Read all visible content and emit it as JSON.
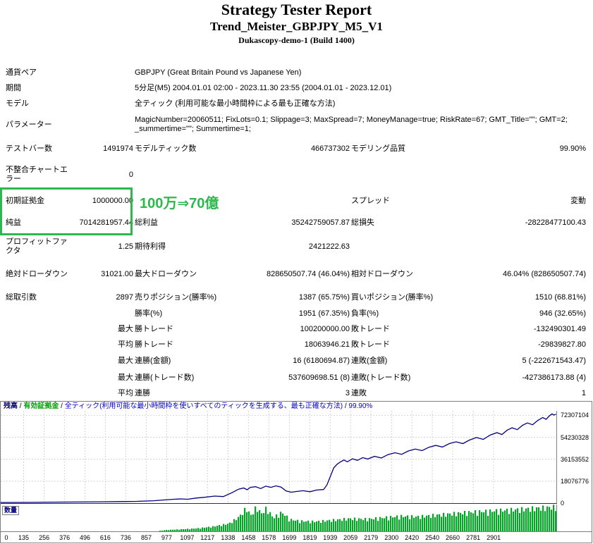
{
  "header": {
    "title": "Strategy Tester Report",
    "ea_name": "Trend_Meister_GBPJPY_M5_V1",
    "server": "Dukascopy-demo-1 (Build 1400)"
  },
  "highlight": {
    "annotation": "100万⇒70億",
    "color": "#2db84d"
  },
  "table": {
    "rows": [
      [
        {
          "t": "通貨ペア",
          "s": 2
        },
        {
          "t": "GBPJPY (Great Britain Pound vs Japanese Yen)",
          "s": 4
        }
      ],
      [
        {
          "t": "期間",
          "s": 2
        },
        {
          "t": "5分足(M5) 2004.01.01 02:00 - 2023.11.30 23:55 (2004.01.01 - 2023.12.01)",
          "s": 4
        }
      ],
      [
        {
          "t": "モデル",
          "s": 2
        },
        {
          "t": "全ティック (利用可能な最小時間枠による最も正確な方法)",
          "s": 4
        }
      ],
      [
        {
          "t": "パラメーター",
          "s": 2
        },
        {
          "t": "MagicNumber=20060511; FixLots=0.1; Slippage=3; MaxSpread=7; MoneyManage=true; RiskRate=67; GMT_Title=\"\"; GMT=2; _summertime=\"\"; Summertime=1;",
          "s": 4
        }
      ],
      [
        {
          "t": "テストバー数"
        },
        {
          "t": "1491974",
          "a": "r"
        },
        {
          "t": "モデルティック数"
        },
        {
          "t": "466737302",
          "a": "r"
        },
        {
          "t": "モデリング品質"
        },
        {
          "t": "99.90%",
          "a": "r"
        }
      ],
      [
        {
          "t": "不整合チャートエラー"
        },
        {
          "t": "0",
          "a": "r"
        },
        {
          "t": "",
          "s": 4
        }
      ],
      [
        {
          "t": "初期証拠金"
        },
        {
          "t": "1000000.00",
          "a": "r"
        },
        {
          "t": "",
          "s": 2
        },
        {
          "t": "スプレッド"
        },
        {
          "t": "変動",
          "a": "r"
        }
      ],
      [
        {
          "t": "純益"
        },
        {
          "t": "7014281957.44",
          "a": "r"
        },
        {
          "t": "総利益"
        },
        {
          "t": "35242759057.87",
          "a": "r"
        },
        {
          "t": "総損失"
        },
        {
          "t": "-28228477100.43",
          "a": "r"
        }
      ],
      [
        {
          "t": "プロフィットファクタ"
        },
        {
          "t": "1.25",
          "a": "r"
        },
        {
          "t": "期待利得"
        },
        {
          "t": "2421222.63",
          "a": "r"
        },
        {
          "t": "",
          "s": 2
        }
      ],
      [
        {
          "t": "絶対ドローダウン"
        },
        {
          "t": "31021.00",
          "a": "r"
        },
        {
          "t": "最大ドローダウン"
        },
        {
          "t": "828650507.74 (46.04%)",
          "a": "r"
        },
        {
          "t": "相対ドローダウン"
        },
        {
          "t": "46.04% (828650507.74)",
          "a": "r"
        }
      ],
      [
        {
          "t": "総取引数"
        },
        {
          "t": "2897",
          "a": "r"
        },
        {
          "t": "売りポジション(勝率%)"
        },
        {
          "t": "1387 (65.75%)",
          "a": "r"
        },
        {
          "t": "買いポジション(勝率%)"
        },
        {
          "t": "1510 (68.81%)",
          "a": "r"
        }
      ],
      [
        {
          "t": ""
        },
        {
          "t": "",
          "a": "r"
        },
        {
          "t": "勝率(%)"
        },
        {
          "t": "1951 (67.35%)",
          "a": "r"
        },
        {
          "t": "負率(%)"
        },
        {
          "t": "946 (32.65%)",
          "a": "r"
        }
      ],
      [
        {
          "t": ""
        },
        {
          "t": "最大",
          "a": "r"
        },
        {
          "t": "勝トレード"
        },
        {
          "t": "100200000.00",
          "a": "r"
        },
        {
          "t": "敗トレード"
        },
        {
          "t": "-132490301.49",
          "a": "r"
        }
      ],
      [
        {
          "t": ""
        },
        {
          "t": "平均",
          "a": "r"
        },
        {
          "t": "勝トレード"
        },
        {
          "t": "18063946.21",
          "a": "r"
        },
        {
          "t": "敗トレード"
        },
        {
          "t": "-29839827.80",
          "a": "r"
        }
      ],
      [
        {
          "t": ""
        },
        {
          "t": "最大",
          "a": "r"
        },
        {
          "t": "連勝(金額)"
        },
        {
          "t": "16 (6180694.87)",
          "a": "r"
        },
        {
          "t": "連敗(金額)"
        },
        {
          "t": "5 (-222671543.47)",
          "a": "r"
        }
      ],
      [
        {
          "t": ""
        },
        {
          "t": "最大",
          "a": "r"
        },
        {
          "t": "連勝(トレード数)"
        },
        {
          "t": "537609698.51 (8)",
          "a": "r"
        },
        {
          "t": "連敗(トレード数)"
        },
        {
          "t": "-427386173.88 (4)",
          "a": "r"
        }
      ],
      [
        {
          "t": ""
        },
        {
          "t": "平均",
          "a": "r"
        },
        {
          "t": "連勝"
        },
        {
          "t": "3",
          "a": "r"
        },
        {
          "t": "連敗"
        },
        {
          "t": "1",
          "a": "r"
        }
      ]
    ]
  },
  "chart_data": {
    "type": "line",
    "legend_parts": [
      {
        "text": "残高",
        "color": "#000066",
        "bold": true
      },
      {
        "text": "有効証拠金",
        "color": "#00a000",
        "bold": true
      },
      {
        "text": "全ティック(利用可能な最小時間枠を使いすべてのティックを生成する、最も正確な方法)",
        "color": "#0000c8",
        "bold": false
      },
      {
        "text": "99.90%",
        "color": "#0000c8",
        "bold": false
      }
    ],
    "legend_separator": " / ",
    "lots_label": "数量",
    "y_ticks": [
      "72307104",
      "54230328",
      "36153552",
      "18076776",
      "0"
    ],
    "y_tick_values": [
      72307104,
      54230328,
      36153552,
      18076776,
      0
    ],
    "y_axis_max": 76000000,
    "x_ticks": [
      0,
      135,
      256,
      376,
      496,
      616,
      736,
      857,
      977,
      1097,
      1217,
      1338,
      1458,
      1578,
      1699,
      1819,
      1939,
      2059,
      2179,
      2300,
      2420,
      2540,
      2660,
      2781,
      2901
    ],
    "x_axis_max": 3270,
    "balance_color": "#000080",
    "lots_color": "#00a623",
    "grid_color": "#d4d4d4",
    "balance_points": [
      [
        0,
        500000
      ],
      [
        150,
        600000
      ],
      [
        300,
        800000
      ],
      [
        450,
        950000
      ],
      [
        600,
        1100000
      ],
      [
        700,
        1250000
      ],
      [
        800,
        1450000
      ],
      [
        900,
        2000000
      ],
      [
        960,
        2600000
      ],
      [
        1020,
        3200000
      ],
      [
        1060,
        3500000
      ],
      [
        1100,
        3200000
      ],
      [
        1150,
        4200000
      ],
      [
        1200,
        4800000
      ],
      [
        1260,
        5800000
      ],
      [
        1310,
        5400000
      ],
      [
        1360,
        8500000
      ],
      [
        1400,
        11500000
      ],
      [
        1430,
        12500000
      ],
      [
        1450,
        11000000
      ],
      [
        1470,
        13000000
      ],
      [
        1500,
        13500000
      ],
      [
        1530,
        12000000
      ],
      [
        1560,
        14000000
      ],
      [
        1590,
        13000000
      ],
      [
        1620,
        14200000
      ],
      [
        1650,
        13200000
      ],
      [
        1680,
        10000000
      ],
      [
        1710,
        9000000
      ],
      [
        1740,
        9600000
      ],
      [
        1780,
        10200000
      ],
      [
        1820,
        9400000
      ],
      [
        1860,
        10800000
      ],
      [
        1900,
        11200000
      ],
      [
        1920,
        15000000
      ],
      [
        1940,
        22000000
      ],
      [
        1960,
        29000000
      ],
      [
        1980,
        32000000
      ],
      [
        2000,
        34000000
      ],
      [
        2020,
        35500000
      ],
      [
        2040,
        34000000
      ],
      [
        2070,
        36500000
      ],
      [
        2100,
        35200000
      ],
      [
        2130,
        37500000
      ],
      [
        2160,
        36300000
      ],
      [
        2200,
        38500000
      ],
      [
        2240,
        37200000
      ],
      [
        2280,
        40000000
      ],
      [
        2320,
        41500000
      ],
      [
        2360,
        40200000
      ],
      [
        2400,
        43000000
      ],
      [
        2440,
        44500000
      ],
      [
        2480,
        43200000
      ],
      [
        2520,
        46000000
      ],
      [
        2560,
        47500000
      ],
      [
        2600,
        46200000
      ],
      [
        2640,
        49000000
      ],
      [
        2680,
        50500000
      ],
      [
        2720,
        49000000
      ],
      [
        2760,
        52000000
      ],
      [
        2800,
        54000000
      ],
      [
        2840,
        52500000
      ],
      [
        2880,
        56000000
      ],
      [
        2920,
        58000000
      ],
      [
        2950,
        56500000
      ],
      [
        2980,
        60000000
      ],
      [
        3010,
        62000000
      ],
      [
        3040,
        60500000
      ],
      [
        3070,
        64000000
      ],
      [
        3100,
        66000000
      ],
      [
        3130,
        64500000
      ],
      [
        3160,
        68000000
      ],
      [
        3190,
        70500000
      ],
      [
        3210,
        69000000
      ],
      [
        3230,
        72000000
      ],
      [
        3245,
        73500000
      ],
      [
        3255,
        72500000
      ],
      [
        3268,
        73200000
      ]
    ],
    "lots_profile": [
      [
        930,
        0
      ],
      [
        960,
        0.05
      ],
      [
        1050,
        0.08
      ],
      [
        1150,
        0.12
      ],
      [
        1250,
        0.2
      ],
      [
        1340,
        0.32
      ],
      [
        1400,
        0.6
      ],
      [
        1440,
        0.95
      ],
      [
        1470,
        0.65
      ],
      [
        1500,
        1.0
      ],
      [
        1530,
        0.72
      ],
      [
        1560,
        0.95
      ],
      [
        1600,
        0.55
      ],
      [
        1650,
        0.78
      ],
      [
        1700,
        0.48
      ],
      [
        1760,
        0.42
      ],
      [
        1850,
        0.4
      ],
      [
        1950,
        0.46
      ],
      [
        2050,
        0.52
      ],
      [
        2150,
        0.5
      ],
      [
        2250,
        0.56
      ],
      [
        2350,
        0.62
      ],
      [
        2450,
        0.6
      ],
      [
        2550,
        0.66
      ],
      [
        2650,
        0.72
      ],
      [
        2750,
        0.78
      ],
      [
        2850,
        0.82
      ],
      [
        2950,
        0.86
      ],
      [
        3050,
        0.9
      ],
      [
        3150,
        0.95
      ],
      [
        3268,
        1.0
      ]
    ]
  }
}
